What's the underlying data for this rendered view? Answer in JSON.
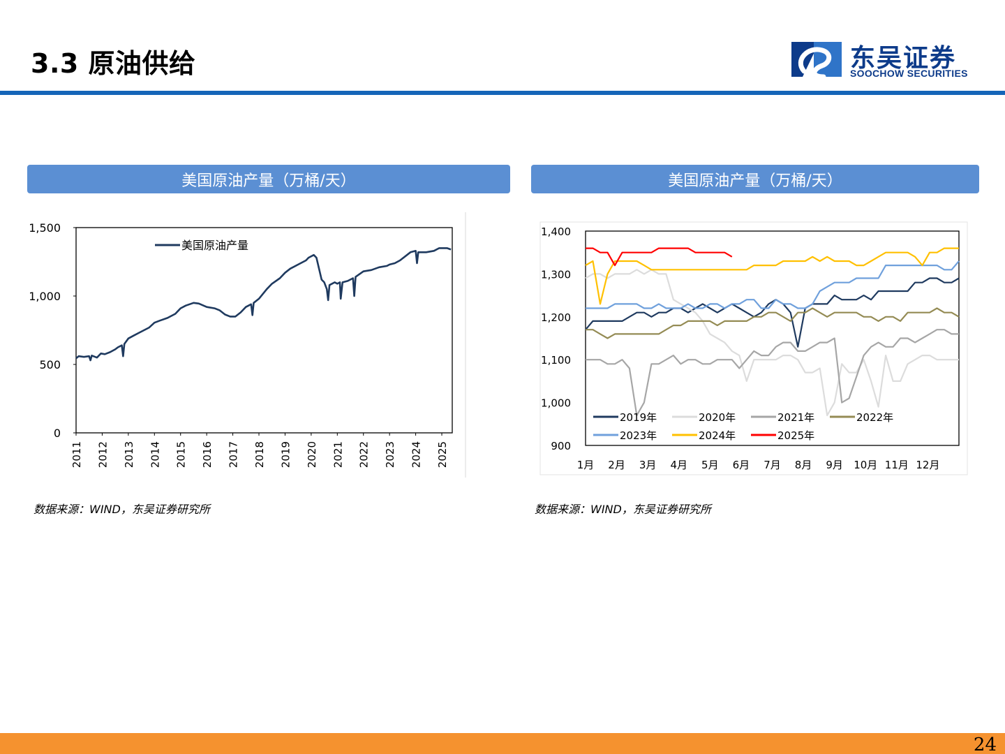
{
  "header": {
    "title": "3.3 原油供给"
  },
  "logo": {
    "cn": "东吴证券",
    "en": "SOOCHOW SECURITIES",
    "colors": {
      "dark": "#0d3b8a",
      "light": "#2f74c8"
    }
  },
  "panels": [
    {
      "title": "美国原油产量（万桶/天）",
      "source": "数据来源：WIND，东吴证券研究所"
    },
    {
      "title": "美国原油产量（万桶/天）",
      "source": "数据来源：WIND，东吴证券研究所"
    }
  ],
  "footer": {
    "page": "24"
  },
  "chart_data": [
    {
      "type": "line",
      "x_ticks": [
        "2011",
        "2012",
        "2013",
        "2014",
        "2015",
        "2016",
        "2017",
        "2018",
        "2019",
        "2020",
        "2021",
        "2022",
        "2023",
        "2024",
        "2025"
      ],
      "y_ticks": [
        "0",
        "500",
        "1,000",
        "1,500"
      ],
      "ylim": [
        0,
        1500
      ],
      "xlim": [
        2011.0,
        2025.4
      ],
      "grid": false,
      "legend": "top-left",
      "series": [
        {
          "name": "美国原油产量",
          "color": "#1f3a5f",
          "points": [
            [
              2011.0,
              545
            ],
            [
              2011.1,
              560
            ],
            [
              2011.3,
              555
            ],
            [
              2011.5,
              560
            ],
            [
              2011.55,
              530
            ],
            [
              2011.6,
              565
            ],
            [
              2011.8,
              550
            ],
            [
              2011.95,
              580
            ],
            [
              2012.1,
              575
            ],
            [
              2012.3,
              590
            ],
            [
              2012.5,
              610
            ],
            [
              2012.6,
              625
            ],
            [
              2012.75,
              640
            ],
            [
              2012.8,
              560
            ],
            [
              2012.85,
              650
            ],
            [
              2013.0,
              690
            ],
            [
              2013.2,
              710
            ],
            [
              2013.4,
              730
            ],
            [
              2013.6,
              750
            ],
            [
              2013.8,
              770
            ],
            [
              2014.0,
              805
            ],
            [
              2014.2,
              820
            ],
            [
              2014.5,
              840
            ],
            [
              2014.8,
              870
            ],
            [
              2015.0,
              910
            ],
            [
              2015.2,
              930
            ],
            [
              2015.5,
              950
            ],
            [
              2015.7,
              945
            ],
            [
              2016.0,
              920
            ],
            [
              2016.3,
              910
            ],
            [
              2016.5,
              895
            ],
            [
              2016.7,
              865
            ],
            [
              2016.9,
              850
            ],
            [
              2017.1,
              850
            ],
            [
              2017.3,
              880
            ],
            [
              2017.5,
              920
            ],
            [
              2017.7,
              940
            ],
            [
              2017.75,
              860
            ],
            [
              2017.8,
              950
            ],
            [
              2018.0,
              980
            ],
            [
              2018.3,
              1050
            ],
            [
              2018.5,
              1090
            ],
            [
              2018.8,
              1130
            ],
            [
              2019.0,
              1170
            ],
            [
              2019.2,
              1200
            ],
            [
              2019.5,
              1230
            ],
            [
              2019.8,
              1260
            ],
            [
              2019.9,
              1280
            ],
            [
              2020.1,
              1300
            ],
            [
              2020.2,
              1280
            ],
            [
              2020.3,
              1200
            ],
            [
              2020.4,
              1120
            ],
            [
              2020.5,
              1100
            ],
            [
              2020.6,
              1050
            ],
            [
              2020.65,
              970
            ],
            [
              2020.7,
              1080
            ],
            [
              2020.9,
              1100
            ],
            [
              2021.0,
              1090
            ],
            [
              2021.1,
              1100
            ],
            [
              2021.13,
              980
            ],
            [
              2021.2,
              1100
            ],
            [
              2021.4,
              1110
            ],
            [
              2021.6,
              1130
            ],
            [
              2021.65,
              1000
            ],
            [
              2021.7,
              1140
            ],
            [
              2022.0,
              1180
            ],
            [
              2022.3,
              1190
            ],
            [
              2022.6,
              1210
            ],
            [
              2022.9,
              1220
            ],
            [
              2023.0,
              1230
            ],
            [
              2023.2,
              1240
            ],
            [
              2023.4,
              1260
            ],
            [
              2023.6,
              1290
            ],
            [
              2023.8,
              1320
            ],
            [
              2024.0,
              1330
            ],
            [
              2024.05,
              1240
            ],
            [
              2024.1,
              1320
            ],
            [
              2024.4,
              1320
            ],
            [
              2024.7,
              1330
            ],
            [
              2024.9,
              1350
            ],
            [
              2025.0,
              1350
            ],
            [
              2025.2,
              1350
            ],
            [
              2025.35,
              1340
            ]
          ]
        }
      ]
    },
    {
      "type": "line",
      "x_ticks": [
        "1月",
        "2月",
        "3月",
        "4月",
        "5月",
        "6月",
        "7月",
        "8月",
        "9月",
        "10月",
        "11月",
        "12月"
      ],
      "y_ticks": [
        "900",
        "1,000",
        "1,100",
        "1,200",
        "1,300",
        "1,400"
      ],
      "ylim": [
        900,
        1400
      ],
      "xlim": [
        1,
        52
      ],
      "grid": false,
      "legend": "bottom-left",
      "series": [
        {
          "name": "2019年",
          "color": "#1f3a5f",
          "values": [
            1170,
            1190,
            1190,
            1190,
            1190,
            1190,
            1200,
            1210,
            1210,
            1200,
            1210,
            1210,
            1220,
            1220,
            1210,
            1220,
            1230,
            1220,
            1210,
            1220,
            1230,
            1220,
            1210,
            1200,
            1210,
            1230,
            1240,
            1230,
            1210,
            1130,
            1220,
            1230,
            1230,
            1230,
            1250,
            1240,
            1240,
            1240,
            1250,
            1240,
            1260,
            1260,
            1260,
            1260,
            1260,
            1280,
            1280,
            1290,
            1290,
            1280,
            1280,
            1290,
            1290
          ]
        },
        {
          "name": "2020年",
          "color": "#dcdcdc",
          "values": [
            1290,
            1300,
            1300,
            1290,
            1300,
            1300,
            1300,
            1310,
            1300,
            1310,
            1300,
            1300,
            1240,
            1230,
            1220,
            1210,
            1190,
            1160,
            1150,
            1140,
            1120,
            1110,
            1050,
            1100,
            1100,
            1100,
            1100,
            1110,
            1110,
            1100,
            1070,
            1070,
            1080,
            970,
            1000,
            1090,
            1070,
            1070,
            1100,
            1050,
            990,
            1110,
            1050,
            1050,
            1090,
            1100,
            1110,
            1110,
            1100,
            1100,
            1100,
            1100,
            1100
          ]
        },
        {
          "name": "2021年",
          "color": "#a6a6a6",
          "values": [
            1100,
            1100,
            1100,
            1090,
            1090,
            1100,
            1080,
            970,
            1000,
            1090,
            1090,
            1100,
            1110,
            1090,
            1100,
            1100,
            1090,
            1090,
            1100,
            1100,
            1100,
            1080,
            1100,
            1120,
            1110,
            1110,
            1130,
            1140,
            1140,
            1120,
            1120,
            1130,
            1140,
            1140,
            1150,
            1000,
            1010,
            1060,
            1110,
            1130,
            1140,
            1130,
            1130,
            1150,
            1150,
            1140,
            1150,
            1160,
            1170,
            1170,
            1160,
            1160,
            1180
          ]
        },
        {
          "name": "2022年",
          "color": "#948b54",
          "values": [
            1170,
            1170,
            1160,
            1150,
            1160,
            1160,
            1160,
            1160,
            1160,
            1160,
            1160,
            1170,
            1180,
            1180,
            1190,
            1190,
            1190,
            1190,
            1180,
            1190,
            1190,
            1190,
            1190,
            1200,
            1200,
            1210,
            1210,
            1200,
            1190,
            1210,
            1210,
            1220,
            1210,
            1200,
            1210,
            1210,
            1210,
            1210,
            1200,
            1200,
            1190,
            1200,
            1200,
            1190,
            1210,
            1210,
            1210,
            1210,
            1220,
            1210,
            1210,
            1200,
            1210
          ]
        },
        {
          "name": "2023年",
          "color": "#6fa0dc",
          "values": [
            1220,
            1220,
            1220,
            1220,
            1230,
            1230,
            1230,
            1230,
            1220,
            1220,
            1230,
            1220,
            1220,
            1220,
            1230,
            1220,
            1220,
            1230,
            1230,
            1220,
            1230,
            1230,
            1240,
            1240,
            1220,
            1220,
            1240,
            1230,
            1230,
            1220,
            1220,
            1230,
            1260,
            1270,
            1280,
            1280,
            1280,
            1290,
            1290,
            1290,
            1290,
            1320,
            1320,
            1320,
            1320,
            1320,
            1320,
            1320,
            1320,
            1310,
            1310,
            1330,
            1330,
            1320
          ]
        },
        {
          "name": "2024年",
          "color": "#ffc000",
          "values": [
            1320,
            1330,
            1230,
            1300,
            1330,
            1330,
            1330,
            1330,
            1320,
            1310,
            1310,
            1310,
            1310,
            1310,
            1310,
            1310,
            1310,
            1310,
            1310,
            1310,
            1310,
            1310,
            1310,
            1320,
            1320,
            1320,
            1320,
            1330,
            1330,
            1330,
            1330,
            1340,
            1330,
            1340,
            1330,
            1330,
            1330,
            1320,
            1320,
            1330,
            1340,
            1350,
            1350,
            1350,
            1350,
            1340,
            1320,
            1350,
            1350,
            1360,
            1360,
            1360,
            1360,
            1360
          ]
        },
        {
          "name": "2025年",
          "color": "#ff0000",
          "values": [
            1360,
            1360,
            1350,
            1350,
            1320,
            1350,
            1350,
            1350,
            1350,
            1350,
            1360,
            1360,
            1360,
            1360,
            1360,
            1350,
            1350,
            1350,
            1350,
            1350,
            1340
          ]
        }
      ]
    }
  ]
}
